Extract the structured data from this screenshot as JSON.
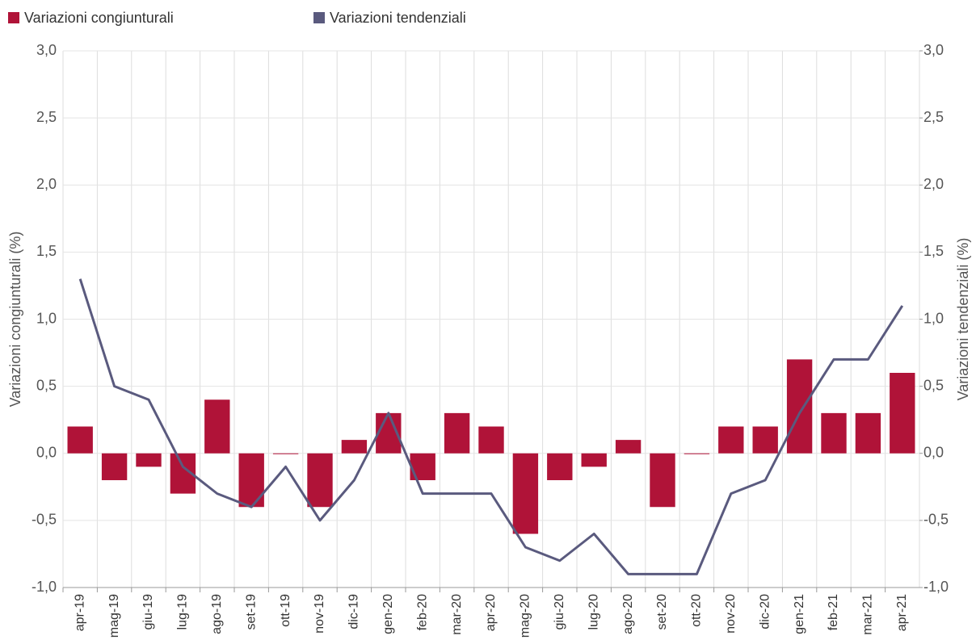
{
  "chart_data": {
    "type": "bar_line",
    "y_axis_label": "Variazioni congiunturali (%)",
    "y2_axis_label": "Variazioni tendenziali (%)",
    "categories": [
      "apr-19",
      "mag-19",
      "giu-19",
      "lug-19",
      "ago-19",
      "set-19",
      "ott-19",
      "nov-19",
      "dic-19",
      "gen-20",
      "feb-20",
      "mar-20",
      "apr-20",
      "mag-20",
      "giu-20",
      "lug-20",
      "ago-20",
      "set-20",
      "ott-20",
      "nov-20",
      "dic-20",
      "gen-21",
      "feb-21",
      "mar-21",
      "apr-21"
    ],
    "series": [
      {
        "name": "Variazioni congiunturali",
        "type": "bar",
        "color": "#b01338",
        "axis": "y",
        "values": [
          0.2,
          -0.2,
          -0.1,
          -0.3,
          0.4,
          -0.4,
          0.0,
          -0.4,
          0.1,
          0.3,
          -0.2,
          0.3,
          0.2,
          -0.6,
          -0.2,
          -0.1,
          0.1,
          -0.4,
          0.0,
          0.2,
          0.2,
          0.7,
          0.3,
          0.3,
          0.6
        ]
      },
      {
        "name": "Variazioni tendenziali",
        "type": "line",
        "color": "#5a5a7e",
        "axis": "y2",
        "values": [
          1.3,
          0.5,
          0.4,
          -0.1,
          -0.3,
          -0.4,
          -0.1,
          -0.5,
          -0.2,
          0.3,
          -0.3,
          -0.3,
          -0.3,
          -0.7,
          -0.8,
          -0.6,
          -0.9,
          -0.9,
          -0.9,
          -0.3,
          -0.2,
          0.3,
          0.7,
          0.7,
          1.1
        ]
      }
    ],
    "ylim": [
      -1,
      3
    ],
    "yticks": [
      {
        "value": -1,
        "label": "-1,0"
      },
      {
        "value": -0.5,
        "label": "-0,5"
      },
      {
        "value": 0,
        "label": "0,0"
      },
      {
        "value": 0.5,
        "label": "0,5"
      },
      {
        "value": 1,
        "label": "1,0"
      },
      {
        "value": 1.5,
        "label": "1,5"
      },
      {
        "value": 2,
        "label": "2,0"
      },
      {
        "value": 2.5,
        "label": "2,5"
      },
      {
        "value": 3,
        "label": "3,0"
      }
    ],
    "y2lim": [
      -1,
      3
    ],
    "y2ticks": [
      {
        "value": -1,
        "label": "-1,0"
      },
      {
        "value": -0.5,
        "label": "-0,5"
      },
      {
        "value": 0,
        "label": "0,0"
      },
      {
        "value": 0.5,
        "label": "0,5"
      },
      {
        "value": 1,
        "label": "1,0"
      },
      {
        "value": 1.5,
        "label": "1,5"
      },
      {
        "value": 2,
        "label": "2,0"
      },
      {
        "value": 2.5,
        "label": "2,5"
      },
      {
        "value": 3,
        "label": "3,0"
      }
    ],
    "grid": true,
    "legend": "top-left"
  }
}
